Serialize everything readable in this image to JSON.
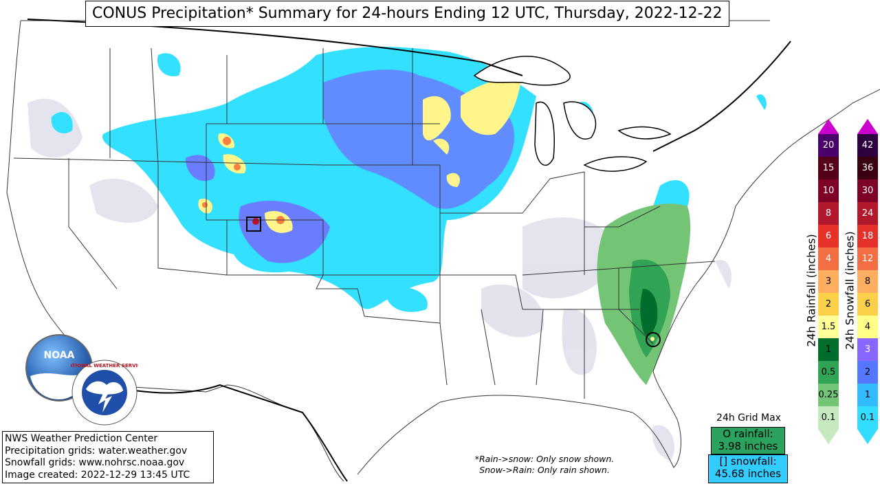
{
  "title": "CONUS Precipitation* Summary for 24-hours Ending 12 UTC, Thursday, 2022-12-22",
  "info_lines": [
    "NWS Weather Prediction Center",
    "Precipitation grids: water.weather.gov",
    "Snowfall grids: www.nohrsc.noaa.gov",
    "Image created: 2022-12-29 13:45 UTC"
  ],
  "note_lines": [
    "*Rain->snow: Only snow shown.",
    "Snow->Rain: Only rain shown."
  ],
  "grid_max": {
    "title": "24h Grid Max",
    "rain_label": "O rainfall:",
    "rain_value": "3.98 inches",
    "snow_label": "[] snowfall:",
    "snow_value": "45.68 inches"
  },
  "rain_colorbar": {
    "label": "24h Rainfall (inches)",
    "levels": [
      "0.1",
      "0.25",
      "0.5",
      "1",
      "1.5",
      "2",
      "3",
      "4",
      "6",
      "8",
      "10",
      "15",
      "20"
    ],
    "colors": [
      "#c7e9c0",
      "#74c476",
      "#31a354",
      "#006d2c",
      "#ffff99",
      "#fdd049",
      "#fdae61",
      "#f46d43",
      "#e6312b",
      "#b2182b",
      "#7f0026",
      "#54001a",
      "#4a006a"
    ],
    "text_colors": [
      "#000",
      "#000",
      "#000",
      "#000",
      "#000",
      "#000",
      "#000",
      "#fff",
      "#fff",
      "#fff",
      "#fff",
      "#fff",
      "#fff"
    ],
    "arrow_top": "#cc00cc",
    "arrow_bottom": "#c7e9c0"
  },
  "snow_colorbar": {
    "label": "24h Snowfall (inches)",
    "levels": [
      "0.1",
      "1",
      "2",
      "3",
      "4",
      "6",
      "8",
      "12",
      "18",
      "24",
      "30",
      "36",
      "42"
    ],
    "colors": [
      "#33ddff",
      "#33bbff",
      "#5577ff",
      "#8866ff",
      "#ffff88",
      "#fdd049",
      "#fdae61",
      "#f46d43",
      "#e6312b",
      "#b2182b",
      "#7f0026",
      "#3a0012",
      "#2e0040"
    ],
    "text_colors": [
      "#000",
      "#000",
      "#000",
      "#fff",
      "#000",
      "#000",
      "#000",
      "#fff",
      "#fff",
      "#fff",
      "#fff",
      "#fff",
      "#fff"
    ],
    "arrow_top": "#cc00cc",
    "arrow_bottom": "#33ddff"
  },
  "logos": {
    "noaa_text": "NOAA",
    "nws_text": "NATIONAL WEATHER SERVICE"
  },
  "colors": {
    "snow_light": "#33ddff",
    "snow_mid": "#5577ff",
    "snow_heavy": "#ffff88",
    "rain_light": "#c7e9c0",
    "rain_mid": "#31a354",
    "trace": "#e0e0ee"
  }
}
